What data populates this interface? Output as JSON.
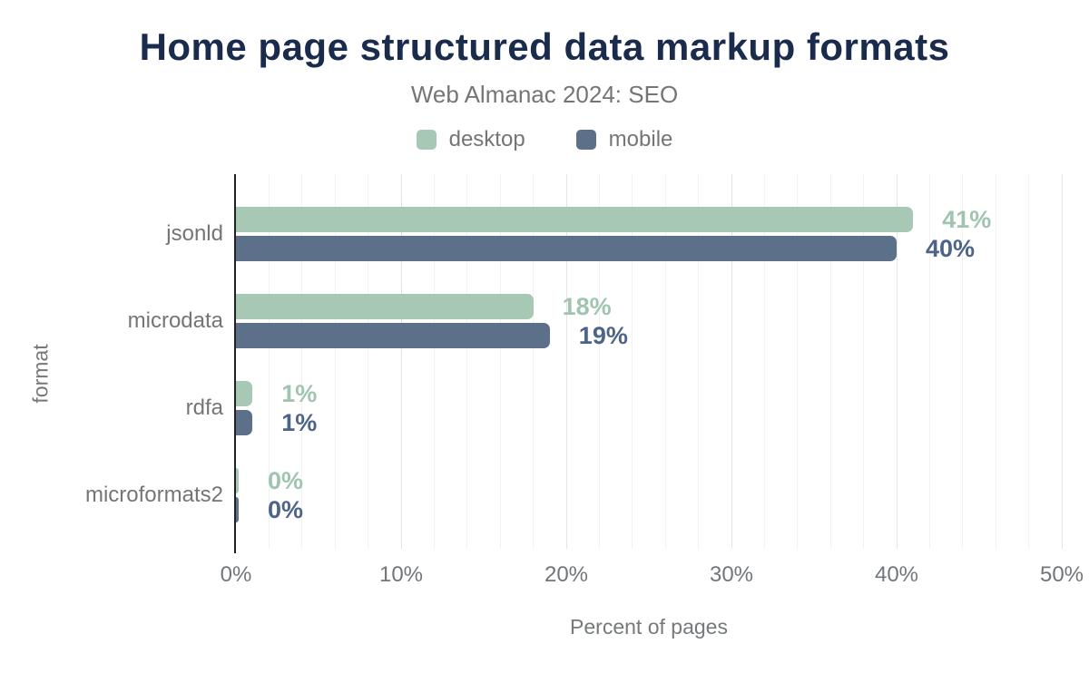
{
  "chart_data": {
    "type": "bar",
    "orientation": "horizontal",
    "title": "Home page structured data markup formats",
    "subtitle": "Web Almanac 2024: SEO",
    "xlabel": "Percent of pages",
    "ylabel": "format",
    "xlim": [
      0,
      50
    ],
    "xticks": [
      "0%",
      "10%",
      "20%",
      "30%",
      "40%",
      "50%"
    ],
    "xgrid": {
      "minor_step": 2,
      "major_step": 10,
      "grid_on": true
    },
    "legend_position": "top",
    "categories": [
      "jsonld",
      "microdata",
      "rdfa",
      "microformats2"
    ],
    "series": [
      {
        "name": "desktop",
        "color": "#a7c8b5",
        "label_color": "#a0c4b1",
        "values": [
          41,
          18,
          1,
          0
        ],
        "value_labels": [
          "41%",
          "18%",
          "1%",
          "0%"
        ]
      },
      {
        "name": "mobile",
        "color": "#5d7089",
        "label_color": "#4d6488",
        "values": [
          40,
          19,
          1,
          0
        ],
        "value_labels": [
          "40%",
          "19%",
          "1%",
          "0%"
        ]
      }
    ]
  }
}
